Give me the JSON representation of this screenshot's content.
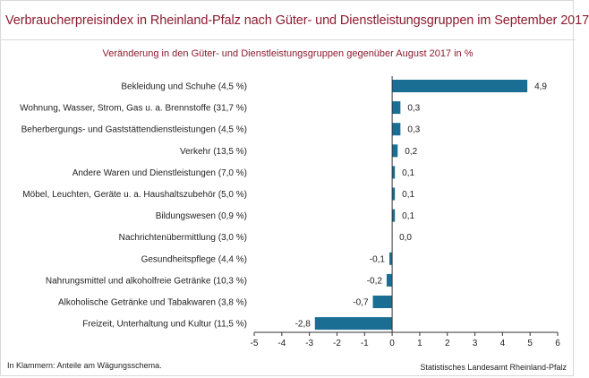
{
  "header": {
    "title": "Verbraucherpreisindex in Rheinland-Pfalz nach Güter- und Dienstleistungsgruppen im September 2017",
    "subtitle": "Veränderung in den Güter- und Dienstleistungsgruppen gegenüber August 2017 in %"
  },
  "footer": {
    "note": "In Klammern: Anteile am Wägungsschema.",
    "source": "Statistisches Landesamt Rheinland-Pfalz"
  },
  "colors": {
    "bar": "#1a6e94",
    "title": "#8c1c2e",
    "axis": "#333333"
  },
  "chart_data": {
    "type": "bar",
    "orientation": "horizontal",
    "categories": [
      "Bekleidung und Schuhe (4,5 %)",
      "Wohnung, Wasser, Strom, Gas u. a. Brennstoffe (31,7 %)",
      "Beherbergungs- und Gaststättendienstleistungen (4,5 %)",
      "Verkehr (13,5 %)",
      "Andere Waren und Dienstleistungen (7,0 %)",
      "Möbel, Leuchten, Geräte u. a. Haushaltszubehör (5,0 %)",
      "Bildungswesen (0,9 %)",
      "Nachrichtenübermittlung (3,0 %)",
      "Gesundheitspflege (4,4 %)",
      "Nahrungsmittel und alkoholfreie Getränke (10,3 %)",
      "Alkoholische Getränke und Tabakwaren (3,8 %)",
      "Freizeit, Unterhaltung und Kultur (11,5 %)"
    ],
    "values": [
      4.9,
      0.3,
      0.3,
      0.2,
      0.1,
      0.1,
      0.1,
      0.0,
      -0.1,
      -0.2,
      -0.7,
      -2.8
    ],
    "value_labels": [
      "4,9",
      "0,3",
      "0,3",
      "0,2",
      "0,1",
      "0,1",
      "0,1",
      "0,0",
      "-0,1",
      "-0,2",
      "-0,7",
      "-2,8"
    ],
    "xlim": [
      -5,
      6
    ],
    "xticks": [
      "-5",
      "-4",
      "-3",
      "-2",
      "-1",
      "0",
      "1",
      "2",
      "3",
      "4",
      "5",
      "6"
    ],
    "grid": false,
    "legend": false
  }
}
